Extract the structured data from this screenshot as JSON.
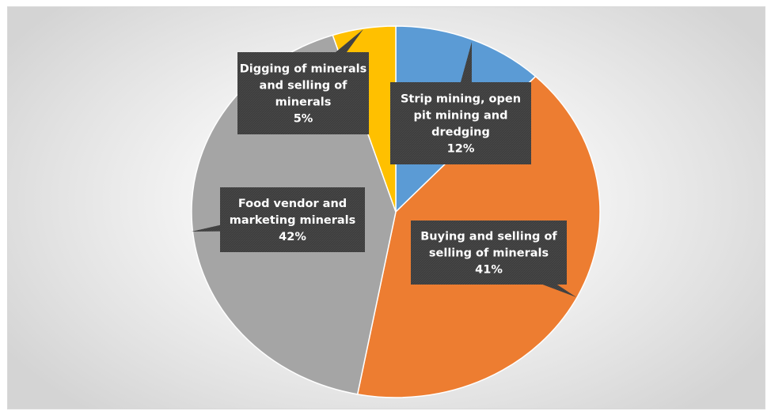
{
  "chart_data": {
    "type": "pie",
    "title": "",
    "categories": [
      "Strip mining, open pit mining and dredging",
      "Buying and selling of selling of minerals",
      "Food vendor and marketing minerals",
      "Digging of minerals and selling of minerals"
    ],
    "values": [
      12,
      41,
      42,
      5
    ],
    "percent_labels": [
      "12%",
      "41%",
      "42%",
      "5%"
    ],
    "label_lines": [
      [
        "Strip mining, open",
        "pit mining and",
        "dredging",
        "12%"
      ],
      [
        "Buying and selling of",
        "selling of minerals",
        "41%"
      ],
      [
        "Food vendor and",
        "marketing minerals",
        "42%"
      ],
      [
        "Digging of minerals",
        "and selling of",
        "minerals",
        "5%"
      ]
    ],
    "colors": [
      "#5B9BD5",
      "#ED7D31",
      "#A5A5A5",
      "#FFC000"
    ],
    "label_style": "dark callouts",
    "legend": "none"
  }
}
